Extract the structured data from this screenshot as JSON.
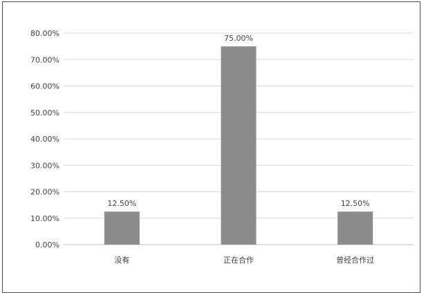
{
  "chart_data": {
    "type": "bar",
    "categories": [
      "没有",
      "正在合作",
      "曾经合作过"
    ],
    "values": [
      12.5,
      75.0,
      12.5
    ],
    "data_labels": [
      "12.50%",
      "75.00%",
      "12.50%"
    ],
    "title": "",
    "xlabel": "",
    "ylabel": "",
    "ylim": [
      0,
      80
    ],
    "yticks": [
      0,
      10,
      20,
      30,
      40,
      50,
      60,
      70,
      80
    ],
    "ytick_labels": [
      "0.00%",
      "10.00%",
      "20.00%",
      "30.00%",
      "40.00%",
      "50.00%",
      "60.00%",
      "70.00%",
      "80.00%"
    ],
    "grid": true,
    "legend": "none",
    "bar_color": "#8c8c8c",
    "grid_color": "#d9d9d9",
    "axis_color": "#bfbfbf",
    "text_color": "#404040"
  }
}
